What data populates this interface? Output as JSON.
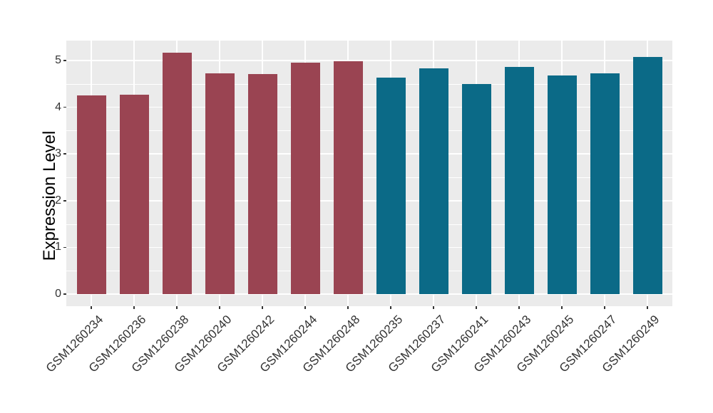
{
  "chart_data": {
    "type": "bar",
    "title": "",
    "xlabel": "",
    "ylabel": "Expression Level",
    "ylim": [
      -0.26,
      5.43
    ],
    "yticks": [
      0,
      1,
      2,
      3,
      4,
      5
    ],
    "ytick_labels": [
      "0",
      "1",
      "2",
      "3",
      "4",
      "5"
    ],
    "grid": true,
    "legend": false,
    "categories": [
      "GSM1260234",
      "GSM1260236",
      "GSM1260238",
      "GSM1260240",
      "GSM1260242",
      "GSM1260244",
      "GSM1260248",
      "GSM1260235",
      "GSM1260237",
      "GSM1260241",
      "GSM1260243",
      "GSM1260245",
      "GSM1260247",
      "GSM1260249"
    ],
    "values": [
      4.26,
      4.27,
      5.17,
      4.72,
      4.71,
      4.96,
      4.98,
      4.63,
      4.84,
      4.5,
      4.87,
      4.68,
      4.73,
      5.08
    ],
    "bar_colors": [
      "#9A4452",
      "#9A4452",
      "#9A4452",
      "#9A4452",
      "#9A4452",
      "#9A4452",
      "#9A4452",
      "#0B6A87",
      "#0B6A87",
      "#0B6A87",
      "#0B6A87",
      "#0B6A87",
      "#0B6A87",
      "#0B6A87"
    ],
    "group_colors": {
      "left_group": "#9A4452",
      "right_group": "#0B6A87"
    },
    "panel_background": "#EBEBEB",
    "grid_color": "#FFFFFF",
    "tick_label_color": "#333333",
    "x_tick_angle_deg": 45
  }
}
